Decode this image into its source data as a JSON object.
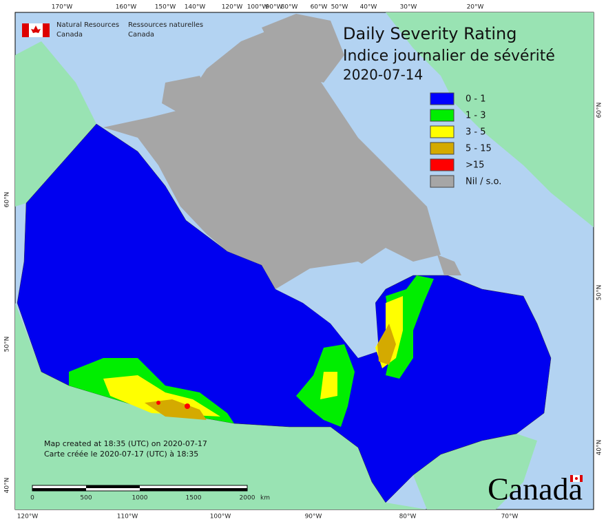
{
  "header": {
    "agency_en": [
      "Natural Resources",
      "Canada"
    ],
    "agency_fr": [
      "Ressources naturelles",
      "Canada"
    ]
  },
  "title": {
    "en": "Daily Severity Rating",
    "fr": "Indice journalier de sévérité",
    "date": "2020-07-14"
  },
  "legend": [
    {
      "label": "0 - 1",
      "color": "#0000ff"
    },
    {
      "label": "1 - 3",
      "color": "#00ee00"
    },
    {
      "label": "3 - 5",
      "color": "#ffff00"
    },
    {
      "label": "5 - 15",
      "color": "#d4aa00"
    },
    {
      "label": ">15",
      "color": "#ff0000"
    },
    {
      "label": "Nil / s.o.",
      "color": "#a6a6a6"
    }
  ],
  "top_longitudes": [
    "170°W",
    "160°W",
    "150°W",
    "140°W",
    "120°W",
    "100°W",
    "90°W",
    "80°W",
    "60°W",
    "50°W",
    "40°W",
    "30°W",
    "20°W"
  ],
  "bottom_longitudes": [
    "120°W",
    "110°W",
    "100°W",
    "90°W",
    "80°W",
    "70°W"
  ],
  "left_latitudes": [
    "60°N",
    "50°N",
    "40°N"
  ],
  "right_latitudes": [
    "60°N",
    "50°N",
    "40°N"
  ],
  "notes": [
    "Map created at 18:35 (UTC) on 2020-07-17",
    "Carte créée le 2020-07-17 (UTC) à 18:35"
  ],
  "scale_bar": {
    "labels": [
      "0",
      "500",
      "1000",
      "1500",
      "2000"
    ],
    "unit": "km"
  },
  "wordmark": "Canada"
}
